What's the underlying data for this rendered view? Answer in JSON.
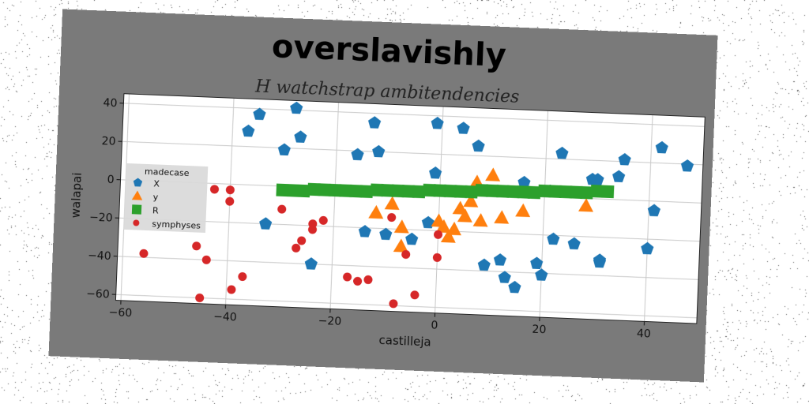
{
  "title": "overslavishly",
  "chart_data": {
    "type": "scatter",
    "title": "H watchstrap ambitendencies",
    "xlabel": "castilleja",
    "ylabel": "walapai",
    "xlim": [
      -61,
      50
    ],
    "ylim": [
      -63,
      45
    ],
    "xticks": [
      -60,
      -40,
      -20,
      0,
      20,
      40
    ],
    "yticks": [
      -60,
      -40,
      -20,
      0,
      20,
      40
    ],
    "grid": true,
    "legend": {
      "title": "madecase",
      "placement": "center-left"
    },
    "series": [
      {
        "name": "X",
        "marker": "pentagon",
        "color": "#1f77b4",
        "points": [
          [
            -37,
            28
          ],
          [
            -35,
            37
          ],
          [
            -30,
            19
          ],
          [
            -28,
            41
          ],
          [
            -27,
            26
          ],
          [
            -33,
            -20
          ],
          [
            -24,
            -40
          ],
          [
            -16,
            18
          ],
          [
            -13,
            35
          ],
          [
            -12,
            20
          ],
          [
            -14,
            -22
          ],
          [
            -10,
            -23
          ],
          [
            -5,
            -25
          ],
          [
            -2,
            -16
          ],
          [
            -1,
            36
          ],
          [
            -1,
            10
          ],
          [
            4,
            34
          ],
          [
            7,
            25
          ],
          [
            9,
            -37
          ],
          [
            12,
            -34
          ],
          [
            13,
            -43
          ],
          [
            15,
            -48
          ],
          [
            16,
            7
          ],
          [
            19,
            -35
          ],
          [
            20,
            -41
          ],
          [
            21,
            3
          ],
          [
            22,
            -22
          ],
          [
            23,
            23
          ],
          [
            26,
            -24
          ],
          [
            29,
            10
          ],
          [
            30,
            10
          ],
          [
            31,
            -32
          ],
          [
            31,
            -33
          ],
          [
            34,
            12
          ],
          [
            35,
            21
          ],
          [
            40,
            -25
          ],
          [
            41,
            -5
          ],
          [
            42,
            28
          ],
          [
            47,
            19
          ]
        ]
      },
      {
        "name": "y",
        "marker": "triangle",
        "color": "#ff7f0e",
        "points": [
          [
            -12,
            -12
          ],
          [
            -9,
            -7
          ],
          [
            -7,
            -19
          ],
          [
            -7,
            -29
          ],
          [
            0,
            -15
          ],
          [
            1,
            -18
          ],
          [
            2,
            -23
          ],
          [
            3,
            -19
          ],
          [
            4,
            -8
          ],
          [
            5,
            -12
          ],
          [
            6,
            -4
          ],
          [
            7,
            6
          ],
          [
            8,
            -14
          ],
          [
            10,
            10
          ],
          [
            12,
            -12
          ],
          [
            16,
            -8
          ],
          [
            28,
            -4
          ]
        ]
      },
      {
        "name": "R",
        "marker": "square",
        "color": "#2ca02c",
        "points": [
          [
            -30,
            -2
          ],
          [
            -28,
            -2
          ],
          [
            -26,
            -2
          ],
          [
            -24,
            -1
          ],
          [
            -22,
            -1
          ],
          [
            -20,
            -1
          ],
          [
            -18,
            -1
          ],
          [
            -16,
            -1
          ],
          [
            -14,
            -1
          ],
          [
            -12,
            0
          ],
          [
            -10,
            0
          ],
          [
            -8,
            0
          ],
          [
            -6,
            0
          ],
          [
            -4,
            0
          ],
          [
            -2,
            1
          ],
          [
            0,
            1
          ],
          [
            2,
            1
          ],
          [
            4,
            1
          ],
          [
            6,
            1
          ],
          [
            8,
            2
          ],
          [
            10,
            2
          ],
          [
            12,
            2
          ],
          [
            14,
            2
          ],
          [
            16,
            2
          ],
          [
            18,
            2
          ],
          [
            20,
            3
          ],
          [
            22,
            3
          ],
          [
            24,
            3
          ],
          [
            26,
            3
          ],
          [
            28,
            3
          ],
          [
            30,
            4
          ],
          [
            32,
            4
          ]
        ]
      },
      {
        "name": "symphyses",
        "marker": "circle",
        "color": "#d62728",
        "points": [
          [
            -56,
            -38
          ],
          [
            -46,
            -33
          ],
          [
            -45,
            -60
          ],
          [
            -44,
            -40
          ],
          [
            -43,
            -3
          ],
          [
            -40,
            -3
          ],
          [
            -40,
            -9
          ],
          [
            -39,
            -55
          ],
          [
            -37,
            -48
          ],
          [
            -30,
            -12
          ],
          [
            -27,
            -32
          ],
          [
            -26,
            -28
          ],
          [
            -24,
            -22
          ],
          [
            -24,
            -19
          ],
          [
            -22,
            -17
          ],
          [
            -17,
            -46
          ],
          [
            -15,
            -48
          ],
          [
            -13,
            -47
          ],
          [
            -9,
            -14
          ],
          [
            -8,
            -59
          ],
          [
            -6,
            -33
          ],
          [
            -4,
            -54
          ],
          [
            0,
            -22
          ],
          [
            0,
            -34
          ]
        ]
      }
    ]
  }
}
